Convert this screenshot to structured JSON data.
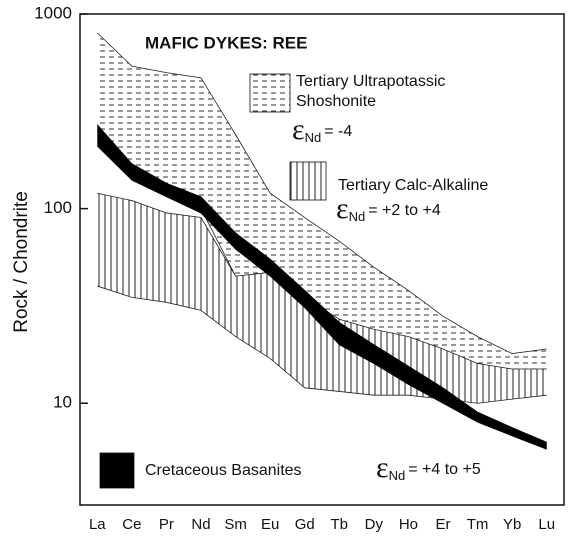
{
  "chart_data": {
    "type": "band",
    "title": "MAFIC DYKES: REE",
    "y_label": "Rock / Chondrite",
    "log_y": true,
    "categories": [
      "La",
      "Ce",
      "Pr",
      "Nd",
      "Sm",
      "Eu",
      "Gd",
      "Tb",
      "Dy",
      "Ho",
      "Er",
      "Tm",
      "Yb",
      "Lu"
    ],
    "ylim": [
      3,
      1000
    ],
    "yticks": [
      10,
      100,
      1000
    ],
    "series": [
      {
        "name": "Tertiary Ultrapotassic Shoshonite",
        "pattern": "dash",
        "color": "#222",
        "epsilon": {
          "symbol": "ε",
          "subscript": "Nd",
          "text": "= -4"
        },
        "high": [
          800,
          540,
          500,
          470,
          240,
          120,
          90,
          68,
          50,
          38,
          28,
          22,
          18,
          19
        ],
        "low": [
          250,
          160,
          120,
          100,
          45,
          45,
          35,
          27,
          22,
          17,
          14,
          14,
          14,
          15
        ]
      },
      {
        "name": "Tertiary Calc-Alkaline",
        "pattern": "vertical",
        "color": "#222",
        "epsilon": {
          "symbol": "ε",
          "subscript": "Nd",
          "text": "= +2 to +4"
        },
        "high": [
          120,
          110,
          95,
          90,
          45,
          47,
          35,
          27,
          24,
          22,
          19,
          16,
          15,
          15
        ],
        "low": [
          40,
          35,
          33,
          30,
          22,
          17,
          12,
          11.5,
          11,
          11,
          10.5,
          10,
          10.5,
          11
        ]
      },
      {
        "name": "Cretaceous Basanites",
        "pattern": "solid",
        "color": "#000",
        "epsilon": {
          "symbol": "ε",
          "subscript": "Nd",
          "text": "= +4 to +5"
        },
        "high": [
          270,
          170,
          135,
          115,
          75,
          55,
          38,
          26,
          20,
          15.5,
          12,
          9,
          7.5,
          6.3
        ],
        "low": [
          210,
          140,
          115,
          95,
          62,
          45,
          31,
          20,
          16,
          12.5,
          10,
          8,
          6.8,
          5.8
        ]
      }
    ]
  }
}
